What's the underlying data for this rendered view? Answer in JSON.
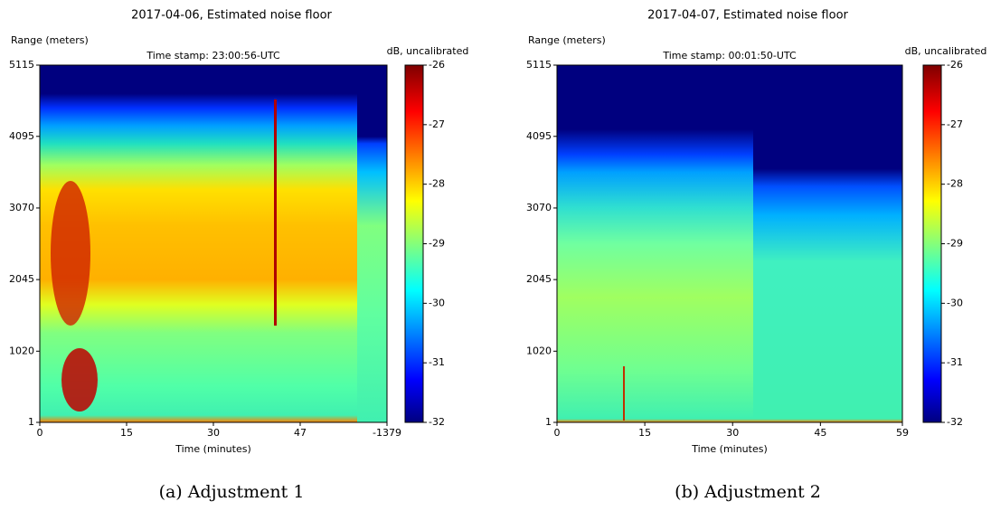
{
  "chart_data": [
    {
      "type": "heatmap",
      "title": "2017-04-06, Estimated noise floor",
      "subtitle": "Time stamp: 23:00:56-UTC",
      "y_label": "Range (meters)",
      "x_label": "Time (minutes)",
      "colorbar_label": "dB, uncalibrated",
      "xticks": [
        "0",
        "15",
        "30",
        "47",
        "-1379"
      ],
      "ylim": [
        1,
        5115
      ],
      "yticks": [
        1,
        1020,
        2045,
        3070,
        4095,
        5115
      ],
      "clim": [
        -32,
        -26
      ],
      "cticks": [
        -26,
        -27,
        -28,
        -29,
        -30,
        -31,
        -32
      ],
      "caption": "(a) Adjustment 1"
    },
    {
      "type": "heatmap",
      "title": "2017-04-07, Estimated noise floor",
      "subtitle": "Time stamp: 00:01:50-UTC",
      "y_label": "Range (meters)",
      "x_label": "Time (minutes)",
      "colorbar_label": "dB, uncalibrated",
      "xlim": [
        0,
        59
      ],
      "xticks": [
        0,
        15,
        30,
        45,
        59
      ],
      "ylim": [
        1,
        5115
      ],
      "yticks": [
        1,
        1020,
        2045,
        3070,
        4095,
        5115
      ],
      "clim": [
        -32,
        -26
      ],
      "cticks": [
        -26,
        -27,
        -28,
        -29,
        -30,
        -31,
        -32
      ],
      "caption": "(b) Adjustment 2"
    }
  ]
}
